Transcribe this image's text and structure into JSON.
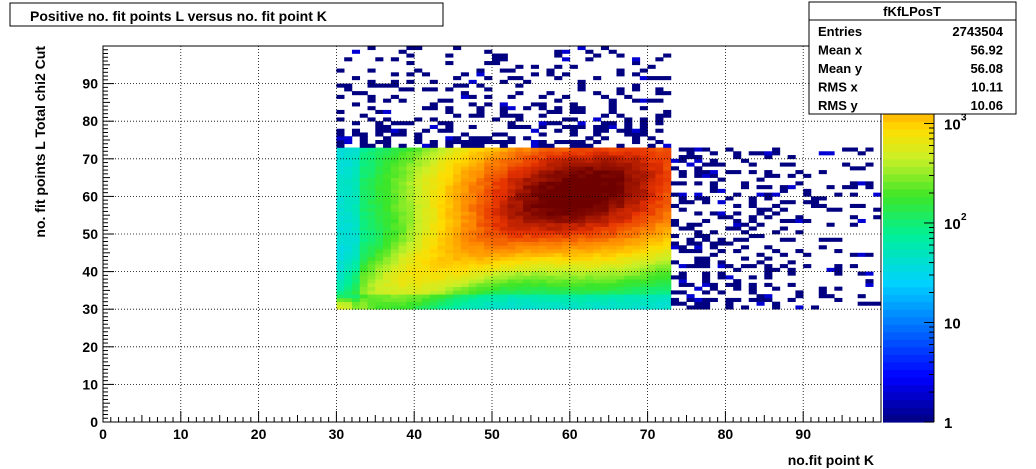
{
  "chart_data": {
    "type": "heatmap",
    "title": "Positive no. fit points L versus no. fit point K",
    "xlabel": "no.fit point K",
    "ylabel": "no. fit points  L   Total chi2 Cut",
    "xlim": [
      0,
      100
    ],
    "ylim": [
      0,
      100
    ],
    "x_ticks": [
      0,
      10,
      20,
      30,
      40,
      50,
      60,
      70,
      80,
      90
    ],
    "y_ticks": [
      0,
      10,
      20,
      30,
      40,
      50,
      60,
      70,
      80,
      90
    ],
    "grid": true,
    "bin_size": 1,
    "z_scale": "log",
    "z_range": [
      1,
      6000
    ],
    "colorbar_ticks": [
      {
        "value": 1,
        "base": "1",
        "exp": ""
      },
      {
        "value": 10,
        "base": "10",
        "exp": ""
      },
      {
        "value": 100,
        "base": "10",
        "exp": "2"
      },
      {
        "value": 1000,
        "base": "10",
        "exp": "3"
      }
    ],
    "stats": {
      "name": "fKfLPosT",
      "rows": [
        {
          "label": "Entries",
          "value": "2743504"
        },
        {
          "label": "Mean x",
          "value": "56.92"
        },
        {
          "label": "Mean y",
          "value": "56.08"
        },
        {
          "label": "RMS x",
          "value": "10.11"
        },
        {
          "label": "RMS y",
          "value": "10.06"
        }
      ]
    },
    "dense_region": {
      "x_range": [
        30,
        73
      ],
      "y_range": [
        30,
        73
      ],
      "peak": {
        "x": 61,
        "y": 61,
        "value": 5500
      },
      "corner_peak": {
        "x": 30,
        "y": 30,
        "value": 1500
      }
    },
    "sparse_regions": [
      {
        "x_range": [
          30,
          73
        ],
        "y_range": [
          73,
          100
        ]
      },
      {
        "x_range": [
          73,
          100
        ],
        "y_range": [
          30,
          73
        ]
      }
    ]
  }
}
